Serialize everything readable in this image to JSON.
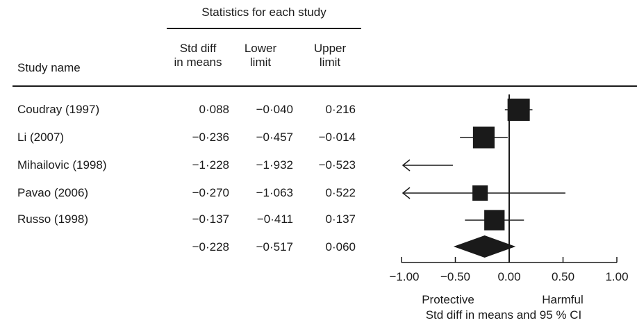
{
  "header": {
    "group_label": "Statistics for each study",
    "study_col": "Study name",
    "col_std_line1": "Std diff",
    "col_std_line2": "in means",
    "col_lower_line1": "Lower",
    "col_lower_line2": "limit",
    "col_upper_line1": "Upper",
    "col_upper_line2": "limit"
  },
  "rows": [
    {
      "name": "Coudray (1997)",
      "std": "0·088",
      "lower": "−0·040",
      "upper": "0·216"
    },
    {
      "name": "Li (2007)",
      "std": "−0·236",
      "lower": "−0·457",
      "upper": "−0·014"
    },
    {
      "name": "Mihailovic (1998)",
      "std": "−1·228",
      "lower": "−1·932",
      "upper": "−0·523"
    },
    {
      "name": "Pavao (2006)",
      "std": "−0·270",
      "lower": "−1·063",
      "upper": "0·522"
    },
    {
      "name": "Russo (1998)",
      "std": "−0·137",
      "lower": "−0·411",
      "upper": "0·137"
    }
  ],
  "summary": {
    "std": "−0·228",
    "lower": "−0·517",
    "upper": "0·060"
  },
  "axis": {
    "tick_labels": [
      "−1.00",
      "−0.50",
      "0.00",
      "0.50",
      "1.00"
    ],
    "label_left": "Protective",
    "label_right": "Harmful",
    "xlabel": "Std diff in means and 95 % CI"
  },
  "chart_data": {
    "type": "forest",
    "xlim": [
      -1.0,
      1.0
    ],
    "xticks": [
      -1.0,
      -0.5,
      0.0,
      0.5,
      1.0
    ],
    "studies": [
      {
        "name": "Coudray (1997)",
        "estimate": 0.088,
        "lower": -0.04,
        "upper": 0.216,
        "weight": 1.0
      },
      {
        "name": "Li (2007)",
        "estimate": -0.236,
        "lower": -0.457,
        "upper": -0.014,
        "weight": 0.95
      },
      {
        "name": "Mihailovic (1998)",
        "estimate": -1.228,
        "lower": -1.932,
        "upper": -0.523,
        "weight": 0.3
      },
      {
        "name": "Pavao (2006)",
        "estimate": -0.27,
        "lower": -1.063,
        "upper": 0.522,
        "weight": 0.45
      },
      {
        "name": "Russo (1998)",
        "estimate": -0.137,
        "lower": -0.411,
        "upper": 0.137,
        "weight": 0.85
      }
    ],
    "summary": {
      "estimate": -0.228,
      "lower": -0.517,
      "upper": 0.06
    }
  }
}
